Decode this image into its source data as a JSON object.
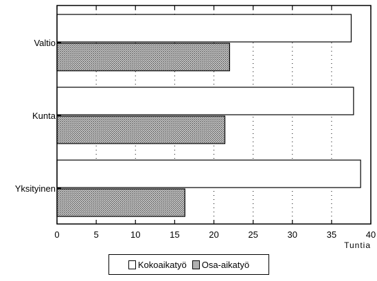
{
  "chart_data": {
    "type": "bar",
    "orientation": "horizontal",
    "categories": [
      "Valtio",
      "Kunta",
      "Yksityinen"
    ],
    "series": [
      {
        "name": "Kokoaikatyö",
        "values": [
          37.5,
          37.8,
          38.7
        ],
        "color": "#ffffff"
      },
      {
        "name": "Osa-aikatyö",
        "values": [
          22.0,
          21.4,
          16.3
        ],
        "color": "#a8a8a8"
      }
    ],
    "xlabel": "Tuntia",
    "xlim": [
      0,
      40
    ],
    "xticks": [
      "0",
      "5",
      "10",
      "15",
      "20",
      "25",
      "30",
      "35",
      "40"
    ],
    "grid": "vertical dotted",
    "legend_position": "bottom-center"
  }
}
